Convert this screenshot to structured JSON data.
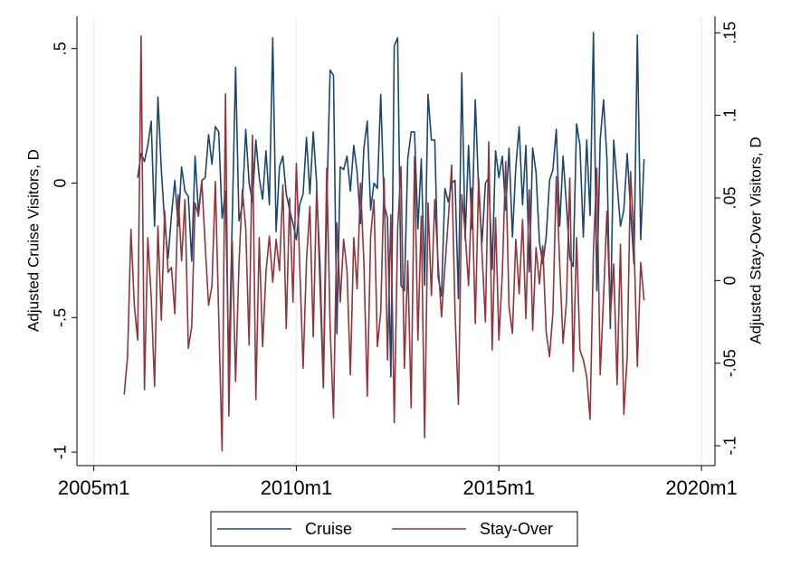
{
  "chart_data": {
    "type": "line",
    "y_label": "Adjusted Cruise Visitors, D",
    "y2_label": "Adjusted Stay-Over Visitors, D",
    "x": [
      "2005m10",
      "2005m11",
      "2005m12",
      "2006m1",
      "2006m2",
      "2006m3",
      "2006m4",
      "2006m5",
      "2006m6",
      "2006m7",
      "2006m8",
      "2006m9",
      "2006m10",
      "2006m11",
      "2006m12",
      "2007m1",
      "2007m2",
      "2007m3",
      "2007m4",
      "2007m5",
      "2007m6",
      "2007m7",
      "2007m8",
      "2007m9",
      "2007m10",
      "2007m11",
      "2007m12",
      "2008m1",
      "2008m2",
      "2008m3",
      "2008m4",
      "2008m5",
      "2008m6",
      "2008m7",
      "2008m8",
      "2008m9",
      "2008m10",
      "2008m11",
      "2008m12",
      "2009m1",
      "2009m2",
      "2009m3",
      "2009m4",
      "2009m5",
      "2009m6",
      "2009m7",
      "2009m8",
      "2009m9",
      "2009m10",
      "2009m11",
      "2009m12",
      "2010m1",
      "2010m2",
      "2010m3",
      "2010m4",
      "2010m5",
      "2010m6",
      "2010m7",
      "2010m8",
      "2010m9",
      "2010m10",
      "2010m11",
      "2010m12",
      "2011m1",
      "2011m2",
      "2011m3",
      "2011m4",
      "2011m5",
      "2011m6",
      "2011m7",
      "2011m8",
      "2011m9",
      "2011m10",
      "2011m11",
      "2011m12",
      "2012m1",
      "2012m2",
      "2012m3",
      "2012m4",
      "2012m5",
      "2012m6",
      "2012m7",
      "2012m8",
      "2012m9",
      "2012m10",
      "2012m11",
      "2012m12",
      "2013m1",
      "2013m2",
      "2013m3",
      "2013m4",
      "2013m5",
      "2013m6",
      "2013m7",
      "2013m8",
      "2013m9",
      "2013m10",
      "2013m11",
      "2013m12",
      "2014m1",
      "2014m2",
      "2014m3",
      "2014m4",
      "2014m5",
      "2014m6",
      "2014m7",
      "2014m8",
      "2014m9",
      "2014m10",
      "2014m11",
      "2014m12",
      "2015m1",
      "2015m2",
      "2015m3",
      "2015m4",
      "2015m5",
      "2015m6",
      "2015m7",
      "2015m8",
      "2015m9",
      "2015m10",
      "2015m11",
      "2015m12",
      "2016m1",
      "2016m2",
      "2016m3",
      "2016m4",
      "2016m5",
      "2016m6",
      "2016m7",
      "2016m8",
      "2016m9",
      "2016m10",
      "2016m11",
      "2016m12",
      "2017m1",
      "2017m2",
      "2017m3",
      "2017m4",
      "2017m5",
      "2017m6",
      "2017m7",
      "2017m8",
      "2017m9",
      "2017m10",
      "2017m11",
      "2017m12",
      "2018m1",
      "2018m2",
      "2018m3",
      "2018m4",
      "2018m5",
      "2018m6",
      "2018m7",
      "2018m8"
    ],
    "series": [
      {
        "name": "Cruise",
        "color": "#1a476f",
        "values": [
          null,
          null,
          null,
          null,
          0.02,
          0.11,
          0.08,
          0.14,
          0.23,
          -0.16,
          0.32,
          0.05,
          -0.15,
          -0.28,
          -0.12,
          0.01,
          -0.16,
          0.06,
          -0.03,
          -0.05,
          -0.29,
          0.1,
          -0.11,
          0.01,
          0.02,
          0.18,
          0.07,
          0.21,
          0.19,
          -0.13,
          -0.03,
          -0.69,
          -0.14,
          0.43,
          -0.14,
          -0.08,
          0.2,
          0.0,
          -0.07,
          0.16,
          0.02,
          -0.06,
          0.12,
          -0.08,
          0.54,
          -0.18,
          0.06,
          0.1,
          -0.04,
          -0.1,
          -0.15,
          -0.21,
          -0.08,
          -0.04,
          0.17,
          -0.04,
          0.19,
          0.0,
          -0.38,
          -0.76,
          -0.08,
          0.42,
          0.4,
          -0.56,
          0.06,
          0.05,
          0.1,
          -0.03,
          0.14,
          0.04,
          -0.15,
          0.13,
          0.23,
          -0.1,
          0.0,
          -0.02,
          0.33,
          -0.08,
          -0.13,
          -0.72,
          0.51,
          0.54,
          -0.38,
          -0.4,
          0.09,
          0.19,
          0.19,
          -0.17,
          0.09,
          -0.38,
          0.33,
          0.16,
          0.16,
          -0.35,
          -0.42,
          -0.02,
          -0.07,
          0.0,
          0.01,
          -0.43,
          0.41,
          -0.21,
          0.14,
          -0.17,
          0.31,
          -0.03,
          -0.22,
          0.0,
          0.02,
          -0.32,
          0.12,
          0.02,
          0.1,
          -0.1,
          0.13,
          -0.2,
          0.06,
          0.21,
          -0.08,
          0.14,
          -0.33,
          0.13,
          0.04,
          -0.22,
          -0.3,
          -0.2,
          0.01,
          0.05,
          0.2,
          -0.16,
          0.1,
          -0.08,
          -0.28,
          -0.31,
          0.22,
          0.14,
          -0.2,
          0.16,
          -0.12,
          0.56,
          -0.4,
          0.16,
          0.31,
          0.09,
          -0.54,
          0.16,
          0.0,
          -0.16,
          -0.1,
          0.11,
          -0.1,
          -0.3,
          0.55,
          -0.21,
          0.09
        ]
      },
      {
        "name": "Stay-Over",
        "color": "#90353b",
        "axis": "y2",
        "values": [
          -0.069,
          -0.046,
          0.031,
          -0.015,
          -0.036,
          0.148,
          -0.066,
          0.026,
          -0.01,
          -0.064,
          0.033,
          -0.024,
          0.042,
          0.005,
          0.008,
          -0.02,
          0.052,
          0.012,
          0.049,
          -0.041,
          -0.028,
          0.047,
          0.039,
          0.06,
          0.021,
          -0.015,
          -0.003,
          0.06,
          -0.022,
          -0.103,
          0.113,
          -0.082,
          0.024,
          -0.061,
          0.01,
          0.055,
          0.032,
          -0.039,
          0.088,
          -0.072,
          0.026,
          -0.04,
          0.005,
          0.027,
          -0.001,
          0.025,
          0.006,
          0.058,
          -0.029,
          0.05,
          -0.013,
          0.071,
          0.009,
          -0.053,
          0.012,
          0.045,
          -0.034,
          0.055,
          0.011,
          -0.061,
          0.068,
          -0.028,
          -0.083,
          0.035,
          -0.013,
          0.025,
          0.006,
          -0.057,
          0.026,
          -0.005,
          0.059,
          0.011,
          -0.07,
          0.027,
          0.049,
          -0.04,
          -0.019,
          0.062,
          -0.048,
          0.04,
          -0.086,
          0.031,
          0.069,
          -0.053,
          0.012,
          -0.077,
          0.075,
          -0.036,
          0.039,
          -0.095,
          0.047,
          -0.009,
          0.049,
          0.01,
          -0.022,
          0.008,
          0.037,
          0.07,
          -0.019,
          -0.075,
          0.052,
          0.029,
          -0.003,
          0.056,
          -0.026,
          0.062,
          0.016,
          -0.025,
          0.084,
          -0.042,
          0.038,
          -0.036,
          0.004,
          0.072,
          -0.016,
          -0.032,
          0.025,
          -0.008,
          0.037,
          -0.023,
          0.055,
          -0.03,
          0.02,
          -0.002,
          0.021,
          -0.031,
          -0.046,
          -0.019,
          0.063,
          0.01,
          -0.038,
          -0.013,
          0.062,
          -0.055,
          0.026,
          -0.042,
          -0.048,
          -0.058,
          -0.084,
          0.018,
          0.068,
          -0.057,
          -0.01,
          0.042,
          -0.022,
          0.01,
          -0.063,
          0.022,
          -0.081,
          -0.046,
          0.066,
          0.024,
          -0.052,
          0.011,
          -0.012
        ]
      }
    ],
    "xlim": [
      "2004m8",
      "2020m5"
    ],
    "xticks": [
      "2005m1",
      "2010m1",
      "2015m1",
      "2020m1"
    ],
    "ylim": [
      -1.05,
      0.62
    ],
    "yticks": [
      {
        "value": -1,
        "label": "-1"
      },
      {
        "value": -0.5,
        "label": "-.5"
      },
      0,
      {
        "value": 0.5,
        "label": ".5"
      }
    ],
    "y2lim": [
      -0.112,
      0.16
    ],
    "y2ticks": [
      {
        "value": -0.1,
        "label": "-.1"
      },
      {
        "value": -0.05,
        "label": "-.05"
      },
      0,
      {
        "value": 0.05,
        "label": ".05"
      },
      {
        "value": 0.1,
        "label": ".1"
      },
      {
        "value": 0.15,
        "label": ".15"
      }
    ],
    "xgrid": true,
    "legend": "bottom"
  }
}
